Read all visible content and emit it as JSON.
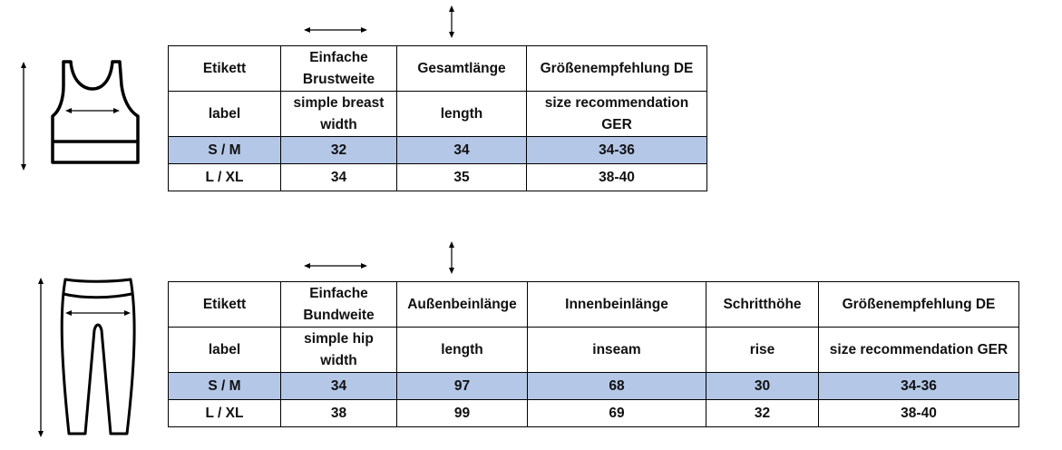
{
  "top_table": {
    "header_de": [
      "Etikett",
      "Einfache Brustweite",
      "Gesamtlänge",
      "Größenempfehlung DE"
    ],
    "header_en": [
      "label",
      "simple breast width",
      "length",
      "size recommendation GER"
    ],
    "rows": [
      [
        "S / M",
        "32",
        "34",
        "34-36"
      ],
      [
        "L / XL",
        "34",
        "35",
        "38-40"
      ]
    ]
  },
  "bottom_table": {
    "header_de": [
      "Etikett",
      "Einfache Bundweite",
      "Außenbeinlänge",
      "Innenbeinlänge",
      "Schritthöhe",
      "Größenempfehlung DE"
    ],
    "header_en": [
      "label",
      "simple hip width",
      "length",
      "inseam",
      "rise",
      "size recommendation GER"
    ],
    "rows": [
      [
        "S / M",
        "34",
        "97",
        "68",
        "30",
        "34-36"
      ],
      [
        "L / XL",
        "38",
        "99",
        "69",
        "32",
        "38-40"
      ]
    ]
  },
  "highlight_color": "#b4c7e7",
  "icons": {
    "top_garment": "tank-top-icon",
    "bottom_garment": "leggings-icon",
    "arrows": "double-arrow-icon"
  }
}
